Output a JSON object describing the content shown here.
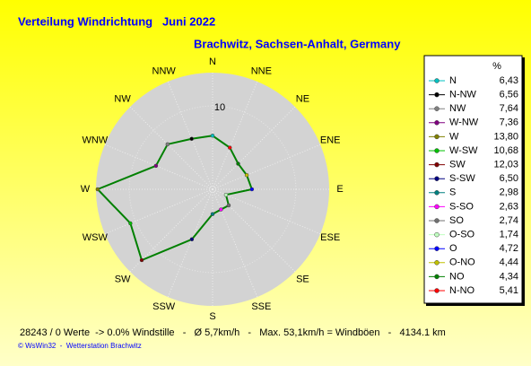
{
  "chart_data": {
    "type": "windrose",
    "title": "Verteilung Windrichtung   Juni 2022",
    "subtitle": "Brachwitz, Sachsen-Anhalt, Germany",
    "direction_labels": [
      "N",
      "NNE",
      "NE",
      "ENE",
      "E",
      "ESE",
      "SE",
      "SSE",
      "S",
      "SSW",
      "SW",
      "WSW",
      "W",
      "WNW",
      "NW",
      "NNW"
    ],
    "legend_header": "%",
    "categories": [
      "N",
      "N-NW",
      "NW",
      "W-NW",
      "W",
      "W-SW",
      "SW",
      "S-SW",
      "S",
      "S-SO",
      "SO",
      "O-SO",
      "O",
      "O-NO",
      "NO",
      "N-NO"
    ],
    "values": [
      6.43,
      6.56,
      7.64,
      7.36,
      13.8,
      10.68,
      12.03,
      6.5,
      2.98,
      2.63,
      2.74,
      1.74,
      4.72,
      4.44,
      4.34,
      5.41
    ],
    "value_labels": [
      "6,43",
      "6,56",
      "7,64",
      "7,36",
      "13,80",
      "10,68",
      "12,03",
      "6,50",
      "2,98",
      "2,63",
      "2,74",
      "1,74",
      "4,72",
      "4,44",
      "4,34",
      "5,41"
    ],
    "colors": [
      "#00c0c0",
      "#000000",
      "#808080",
      "#800080",
      "#808000",
      "#00c000",
      "#800000",
      "#000080",
      "#008080",
      "#ff00ff",
      "#707070",
      "#c0ffc0",
      "#0000ff",
      "#c0c000",
      "#008000",
      "#ff0000"
    ],
    "line_color": "#008000",
    "rlim": [
      0,
      14
    ],
    "rticks": [
      10
    ],
    "footer": "28243 / 0 Werte  -> 0.0% Windstille   -   Ø 5,7km/h   -   Max. 53,1km/h = Windböen   -   4134.1 km",
    "credit": "© WsWin32  -  Wetterstation Brachwitz"
  }
}
